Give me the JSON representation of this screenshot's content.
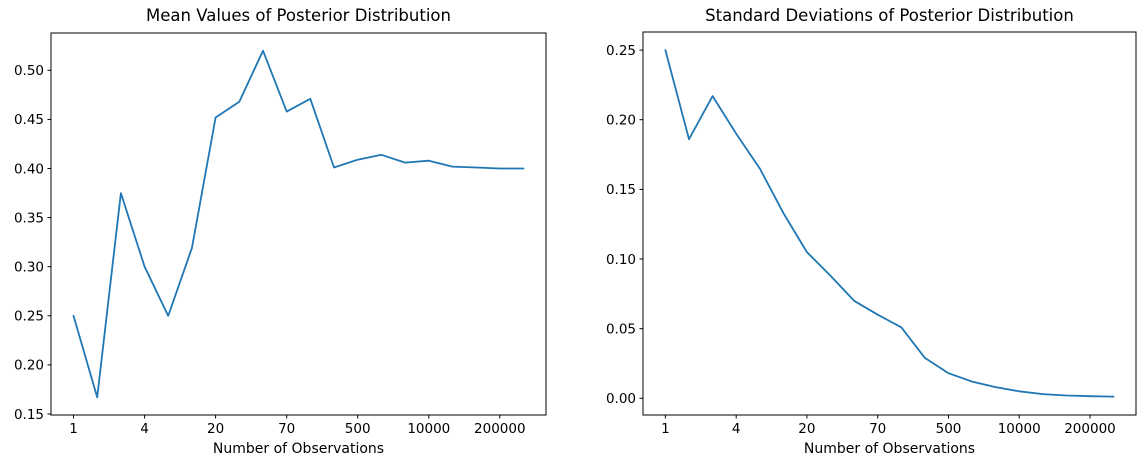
{
  "figure": {
    "background": "#ffffff",
    "line_color": "#1f77b4"
  },
  "chart_data": [
    {
      "id": "posterior-means",
      "type": "line",
      "title": "Mean Values of Posterior Distribution",
      "xlabel": "Number of Observations",
      "ylabel": "",
      "grid": false,
      "legend": null,
      "x_scale": "index-with-custom-tick-labels",
      "x_tick_labels": [
        "1",
        "4",
        "20",
        "70",
        "500",
        "10000",
        "200000"
      ],
      "x_tick_indices": [
        0,
        3,
        6,
        9,
        12,
        15,
        18
      ],
      "n_points": 20,
      "values": [
        0.25,
        0.167,
        0.375,
        0.3,
        0.25,
        0.319,
        0.452,
        0.468,
        0.52,
        0.458,
        0.471,
        0.401,
        0.409,
        0.414,
        0.406,
        0.408,
        0.402,
        0.401,
        0.4,
        0.4
      ],
      "ylim": [
        0.149,
        0.538
      ],
      "yticks": [
        0.15,
        0.2,
        0.25,
        0.3,
        0.35,
        0.4,
        0.45,
        0.5
      ],
      "ytick_labels": [
        "0.15",
        "0.20",
        "0.25",
        "0.30",
        "0.35",
        "0.40",
        "0.45",
        "0.50"
      ],
      "line_color": "#1f77b4"
    },
    {
      "id": "posterior-standard-deviations",
      "type": "line",
      "title": "Standard Deviations of Posterior Distribution",
      "xlabel": "Number of Observations",
      "ylabel": "",
      "grid": false,
      "legend": null,
      "x_scale": "index-with-custom-tick-labels",
      "x_tick_labels": [
        "1",
        "4",
        "20",
        "70",
        "500",
        "10000",
        "200000"
      ],
      "x_tick_indices": [
        0,
        3,
        6,
        9,
        12,
        15,
        18
      ],
      "n_points": 20,
      "values": [
        0.25,
        0.186,
        0.217,
        0.19,
        0.165,
        0.133,
        0.105,
        0.088,
        0.07,
        0.06,
        0.051,
        0.029,
        0.018,
        0.012,
        0.008,
        0.005,
        0.003,
        0.002,
        0.0015,
        0.0012
      ],
      "ylim": [
        -0.012,
        0.263
      ],
      "yticks": [
        0.0,
        0.05,
        0.1,
        0.15,
        0.2,
        0.25
      ],
      "ytick_labels": [
        "0.00",
        "0.05",
        "0.10",
        "0.15",
        "0.20",
        "0.25"
      ],
      "line_color": "#1f77b4"
    }
  ]
}
